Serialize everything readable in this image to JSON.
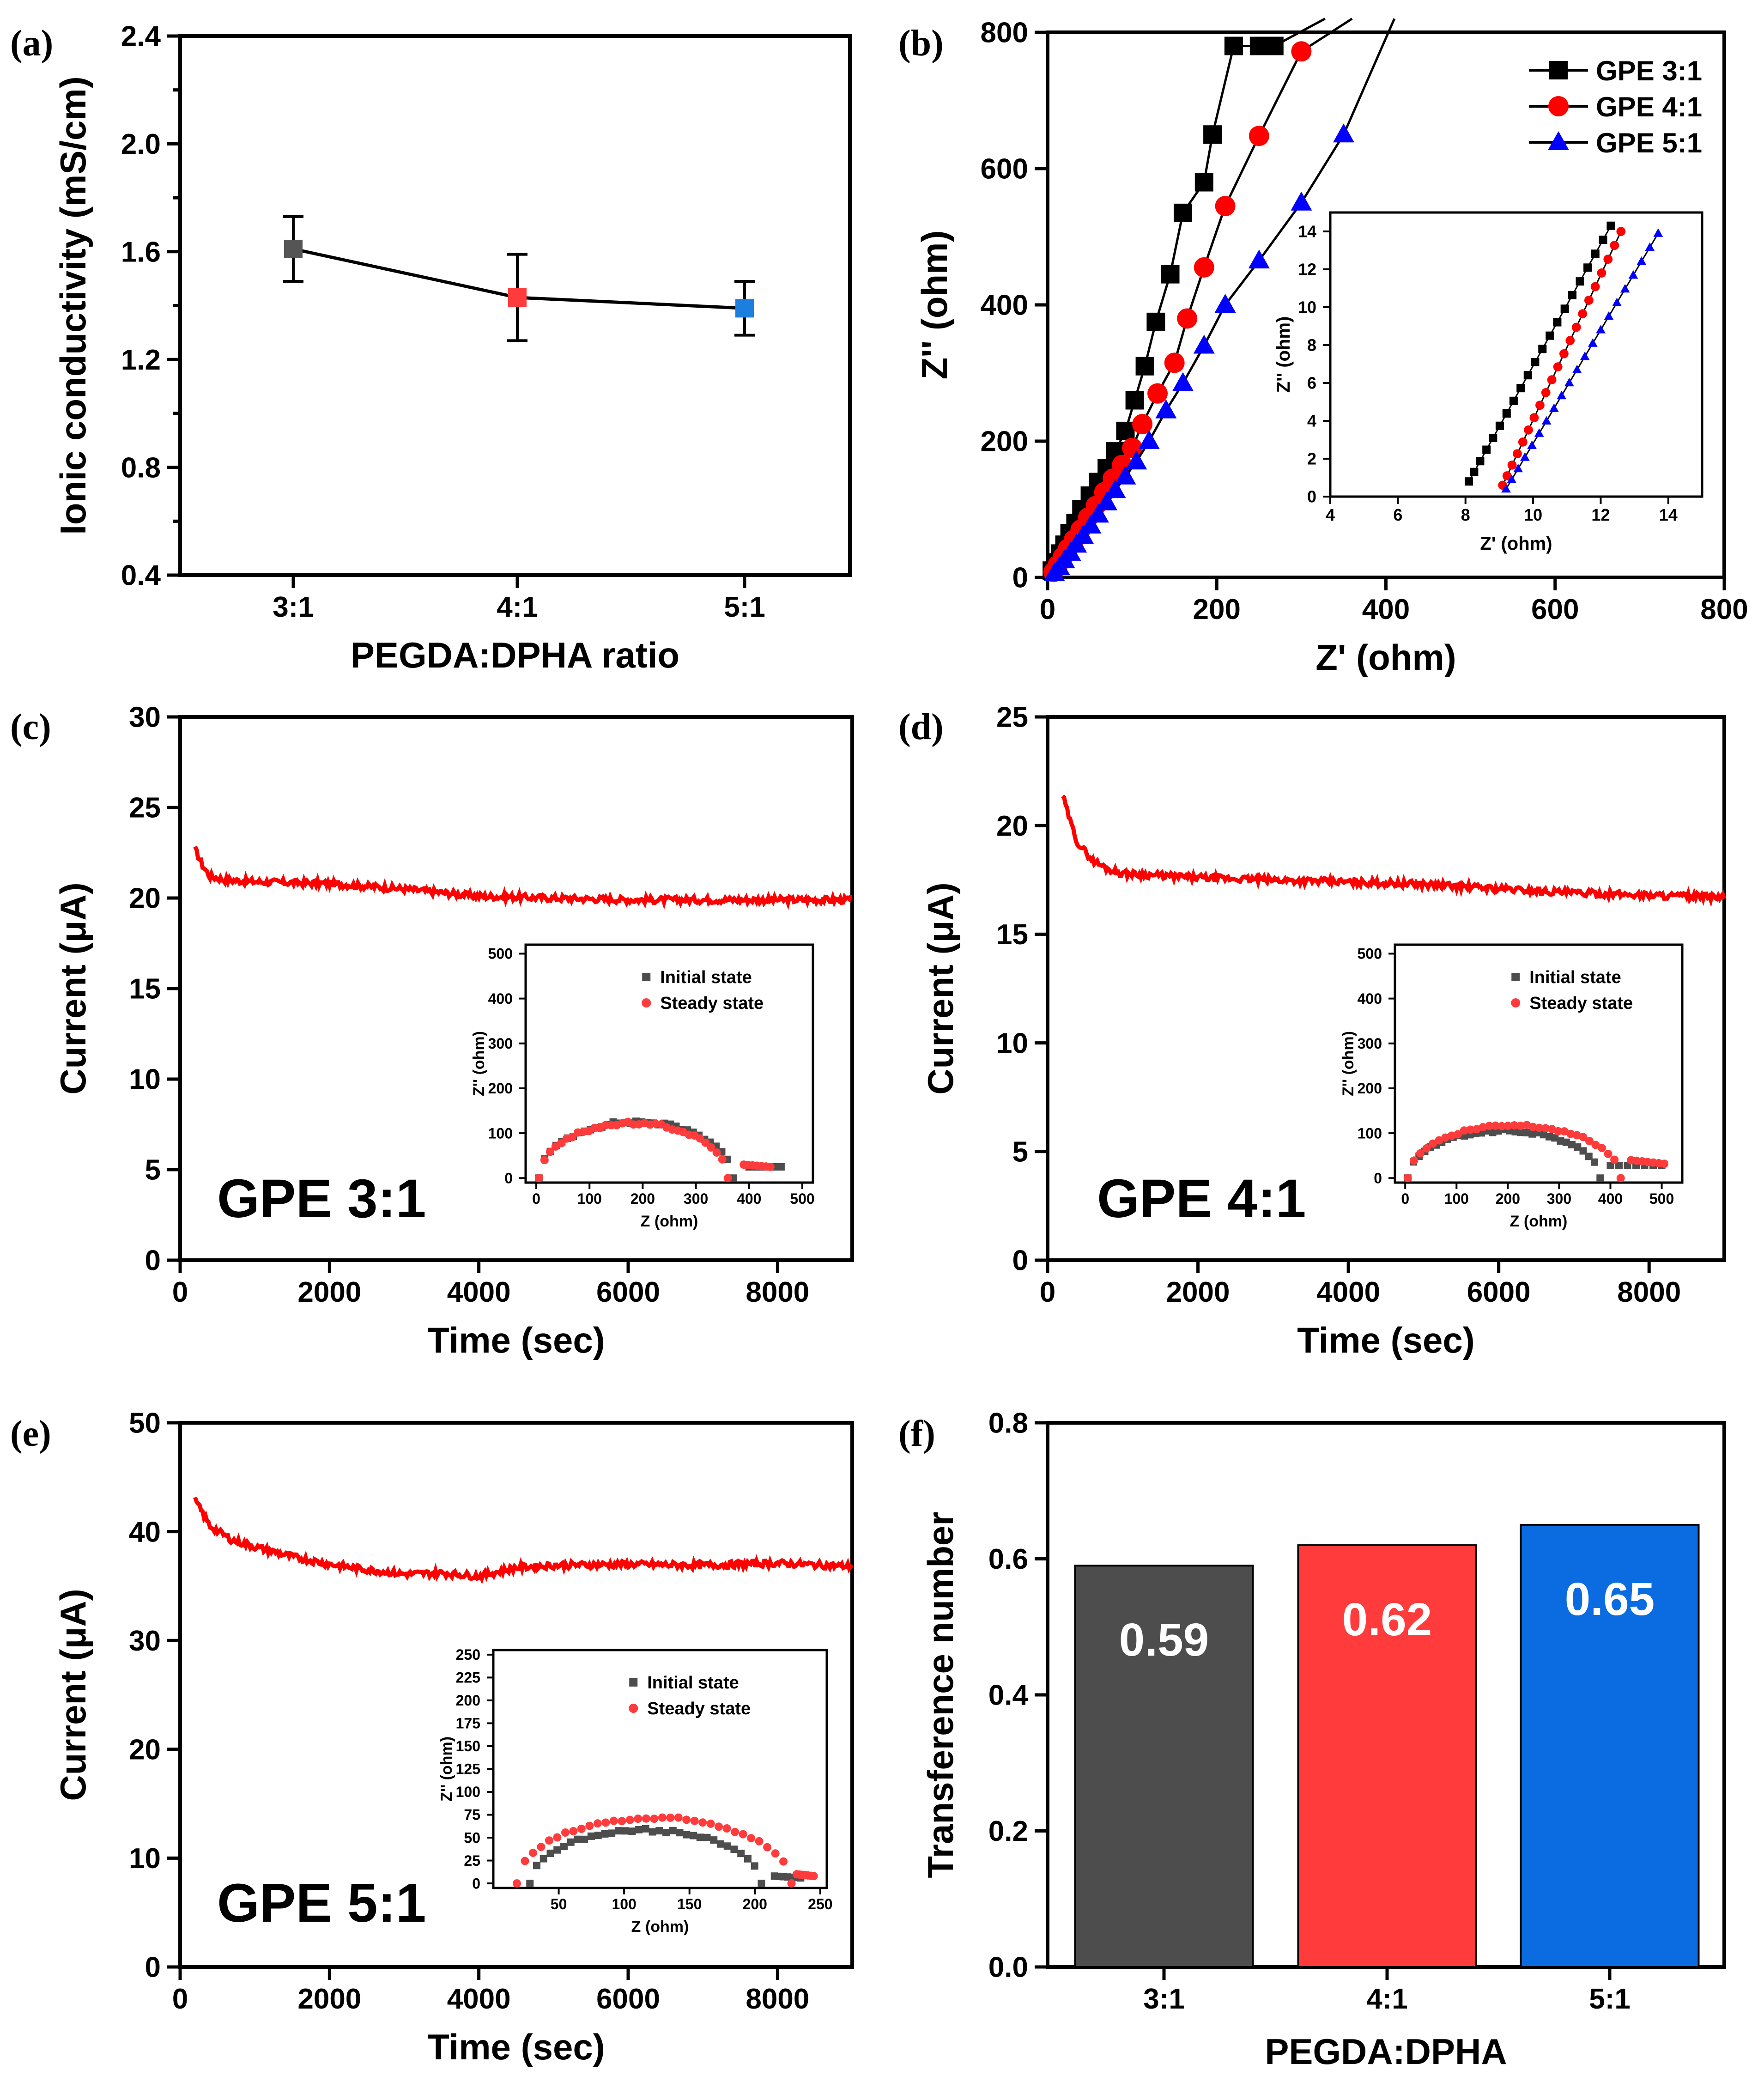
{
  "chart_data": [
    {
      "id": "a",
      "panel_label": "(a)",
      "type": "line",
      "categories": [
        "3:1",
        "4:1",
        "5:1"
      ],
      "values": [
        1.61,
        1.43,
        1.39
      ],
      "errors": [
        0.12,
        0.16,
        0.1
      ],
      "marker_colors": [
        "#555555",
        "#ff3b3b",
        "#1c7fe0"
      ],
      "ylim": [
        0.4,
        2.4
      ],
      "yticks": [
        0.4,
        0.8,
        1.2,
        1.6,
        2.0,
        2.4
      ],
      "ytick_labels": [
        "0.4",
        "0.8",
        "1.2",
        "1.6",
        "2.0",
        "2.4"
      ],
      "xlabel": "PEGDA:DPHA ratio",
      "ylabel": "Ionic conductivity (mS/cm)"
    },
    {
      "id": "b",
      "panel_label": "(b)",
      "type": "scatter",
      "xlabel": "Z' (ohm)",
      "ylabel": "Z'' (ohm)",
      "xlim": [
        0,
        800
      ],
      "ylim": [
        0,
        800
      ],
      "xticks": [
        0,
        200,
        400,
        600,
        800
      ],
      "yticks": [
        0,
        200,
        400,
        600,
        800
      ],
      "legend_position": "top-right",
      "series": [
        {
          "name": "GPE 3:1",
          "color": "#000000",
          "marker": "square",
          "x": [
            5,
            10,
            15,
            20,
            26,
            33,
            40,
            50,
            60,
            70,
            80,
            92,
            103,
            115,
            128,
            145,
            160,
            185,
            195,
            220,
            250,
            268
          ],
          "y": [
            10,
            22,
            35,
            48,
            65,
            80,
            100,
            120,
            140,
            160,
            185,
            215,
            260,
            310,
            375,
            445,
            535,
            580,
            650,
            780,
            780,
            780
          ]
        },
        {
          "name": "GPE 4:1",
          "color": "#ff0000",
          "marker": "circle",
          "x": [
            7,
            12,
            18,
            24,
            31,
            39,
            48,
            57,
            67,
            77,
            88,
            100,
            112,
            130,
            150,
            165,
            185,
            210,
            250,
            300
          ],
          "y": [
            8,
            18,
            30,
            42,
            55,
            70,
            88,
            105,
            125,
            145,
            165,
            190,
            225,
            270,
            315,
            380,
            455,
            545,
            648,
            772
          ]
        },
        {
          "name": "GPE 5:1",
          "color": "#0000ff",
          "marker": "triangle",
          "x": [
            8,
            14,
            20,
            27,
            34,
            42,
            51,
            60,
            70,
            80,
            92,
            105,
            120,
            140,
            160,
            185,
            210,
            250,
            300,
            350
          ],
          "y": [
            6,
            15,
            25,
            36,
            48,
            61,
            76,
            92,
            110,
            128,
            148,
            170,
            200,
            245,
            285,
            340,
            400,
            465,
            550,
            650
          ]
        }
      ],
      "inset": {
        "xlabel": "Z' (ohm)",
        "ylabel": "Z'' (ohm)",
        "xlim": [
          4,
          15
        ],
        "ylim": [
          0,
          15
        ],
        "xticks": [
          4,
          6,
          8,
          10,
          12,
          14
        ],
        "yticks": [
          0,
          2,
          4,
          6,
          8,
          10,
          12,
          14
        ],
        "series": [
          {
            "name": "GPE 3:1",
            "x0": 8.1,
            "y0": 0.8,
            "x1": 12.3,
            "y1": 14.3
          },
          {
            "name": "GPE 4:1",
            "x0": 9.1,
            "y0": 0.6,
            "x1": 12.6,
            "y1": 14.0
          },
          {
            "name": "GPE 5:1",
            "x0": 9.2,
            "y0": 0.4,
            "x1": 13.7,
            "y1": 13.9
          }
        ]
      }
    },
    {
      "id": "c",
      "panel_label": "(c)",
      "type": "line",
      "series_color": "#ff0000",
      "time": [
        200,
        300,
        400,
        600,
        1000,
        2000,
        3000,
        4000,
        5000,
        6000,
        7000,
        8000,
        9000
      ],
      "current": [
        22.7,
        21.8,
        21.2,
        21.0,
        20.9,
        20.8,
        20.5,
        20.1,
        20.0,
        19.9,
        19.9,
        19.9,
        19.9
      ],
      "xlim": [
        0,
        9000
      ],
      "ylim": [
        0,
        30
      ],
      "xticks": [
        0,
        2000,
        4000,
        6000,
        8000
      ],
      "yticks": [
        0,
        5,
        10,
        15,
        20,
        25,
        30
      ],
      "xlabel": "Time (sec)",
      "ylabel": "Current (μA)",
      "annotation": "GPE 3:1",
      "inset": {
        "xlabel": "Z (ohm)",
        "ylabel": "Z'' (ohm)",
        "xlim": [
          -20,
          520
        ],
        "ylim": [
          -10,
          520
        ],
        "xticks": [
          0,
          100,
          200,
          300,
          400,
          500
        ],
        "yticks": [
          0,
          100,
          200,
          300,
          400,
          500
        ],
        "legend": [
          "Initial state",
          "Steady state"
        ],
        "initial": {
          "r0": 5,
          "r1": 370,
          "peak": 125,
          "tail_x": [
            400,
            460
          ],
          "tail_y": [
            25,
            25
          ]
        },
        "steady": {
          "r0": 5,
          "r1": 360,
          "peak": 122,
          "tail_x": [
            390,
            440
          ],
          "tail_y": [
            30,
            25
          ]
        }
      }
    },
    {
      "id": "d",
      "panel_label": "(d)",
      "type": "line",
      "series_color": "#ff0000",
      "time": [
        200,
        300,
        400,
        600,
        800,
        1000,
        1500,
        2000,
        3000,
        4000,
        5000,
        6000,
        7000,
        8000,
        9000
      ],
      "current": [
        21.4,
        20.2,
        19.2,
        18.4,
        18.0,
        17.8,
        17.7,
        17.6,
        17.5,
        17.4,
        17.3,
        17.1,
        16.9,
        16.8,
        16.7
      ],
      "xlim": [
        0,
        9000
      ],
      "ylim": [
        0,
        25
      ],
      "xticks": [
        0,
        2000,
        4000,
        6000,
        8000
      ],
      "yticks": [
        0,
        5,
        10,
        15,
        20,
        25
      ],
      "xlabel": "Time (sec)",
      "ylabel": "Current (μA)",
      "annotation": "GPE 4:1",
      "inset": {
        "xlabel": "Z (ohm)",
        "ylabel": "Z'' (ohm)",
        "xlim": [
          -20,
          540
        ],
        "ylim": [
          -10,
          520
        ],
        "xticks": [
          0,
          100,
          200,
          300,
          400,
          500
        ],
        "yticks": [
          0,
          100,
          200,
          300,
          400,
          500
        ],
        "legend": [
          "Initial state",
          "Steady state"
        ],
        "initial": {
          "r0": 5,
          "r1": 380,
          "peak": 105,
          "tail_x": [
            400,
            500
          ],
          "tail_y": [
            28,
            28
          ]
        },
        "steady": {
          "r0": 5,
          "r1": 420,
          "peak": 118,
          "tail_x": [
            440,
            505
          ],
          "tail_y": [
            40,
            32
          ]
        }
      }
    },
    {
      "id": "e",
      "panel_label": "(e)",
      "type": "line",
      "series_color": "#ff0000",
      "time": [
        200,
        400,
        700,
        1000,
        1500,
        2000,
        2500,
        3000,
        3500,
        4000,
        4500,
        5000,
        6000,
        7000,
        8000,
        9000
      ],
      "current": [
        42.9,
        40.5,
        39.2,
        38.6,
        37.7,
        37.0,
        36.5,
        36.1,
        36.2,
        35.9,
        36.7,
        36.9,
        37.0,
        36.9,
        37.1,
        36.8
      ],
      "xlim": [
        0,
        9000
      ],
      "ylim": [
        0,
        50
      ],
      "xticks": [
        0,
        2000,
        4000,
        6000,
        8000
      ],
      "yticks": [
        0,
        10,
        20,
        30,
        40,
        50
      ],
      "xlabel": "Time (sec)",
      "ylabel": "Current (μA)",
      "annotation": "GPE 5:1",
      "inset": {
        "xlabel": "Z (ohm)",
        "ylabel": "Z'' (ohm)",
        "xlim": [
          0,
          255
        ],
        "ylim": [
          -5,
          255
        ],
        "xticks": [
          50,
          100,
          150,
          200,
          250
        ],
        "yticks": [
          0,
          25,
          50,
          75,
          100,
          125,
          150,
          175,
          200,
          225,
          250
        ],
        "legend": [
          "Initial state",
          "Steady state"
        ],
        "initial": {
          "r0": 28,
          "r1": 205,
          "peak": 58,
          "tail_x": [
            215,
            235
          ],
          "tail_y": [
            8,
            6
          ]
        },
        "steady": {
          "r0": 18,
          "r1": 228,
          "peak": 71,
          "tail_x": [
            232,
            245
          ],
          "tail_y": [
            10,
            8
          ]
        }
      }
    },
    {
      "id": "f",
      "panel_label": "(f)",
      "type": "bar",
      "categories": [
        "3:1",
        "4:1",
        "5:1"
      ],
      "values": [
        0.59,
        0.62,
        0.65
      ],
      "value_labels": [
        "0.59",
        "0.62",
        "0.65"
      ],
      "colors": [
        "#4d4d4d",
        "#ff3b3b",
        "#0a6ce0"
      ],
      "ylim": [
        0.0,
        0.8
      ],
      "yticks": [
        0.0,
        0.2,
        0.4,
        0.6,
        0.8
      ],
      "ytick_labels": [
        "0.0",
        "0.2",
        "0.4",
        "0.6",
        "0.8"
      ],
      "xlabel": "PEGDA:DPHA",
      "ylabel": "Transference number"
    }
  ]
}
